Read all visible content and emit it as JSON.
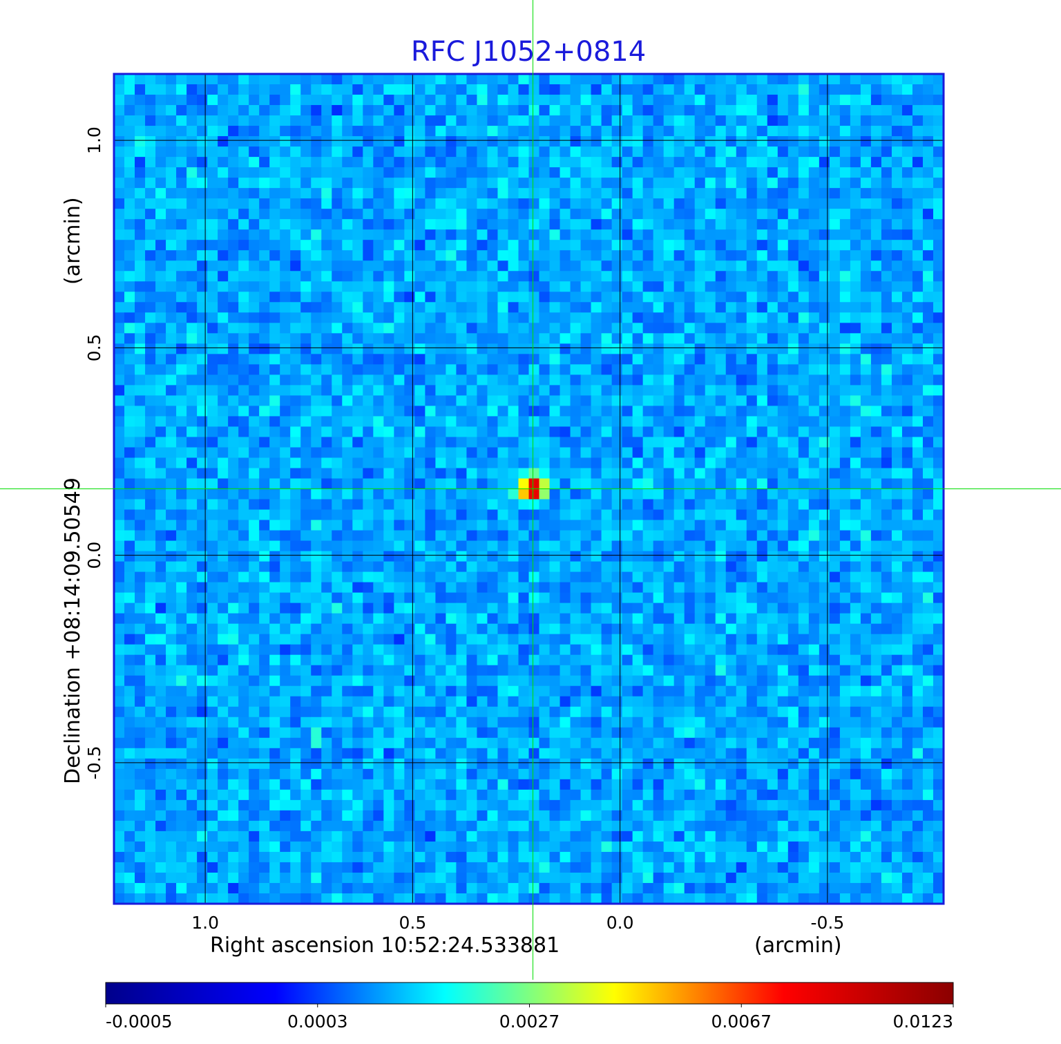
{
  "chart_data": {
    "type": "heatmap",
    "title": "RFC J1052+0814",
    "xlabel": "Right ascension  10:52:24.533881",
    "xunit": "(arcmin)",
    "ylabel": "Declination  +08:14:09.50549",
    "yunit": "(arcmin)",
    "xlim": [
      1.22,
      -0.78
    ],
    "ylim": [
      -0.84,
      1.16
    ],
    "x_ticks": [
      {
        "value": 1.0,
        "label": "1.0"
      },
      {
        "value": 0.5,
        "label": "0.5"
      },
      {
        "value": 0.0,
        "label": "0.0"
      },
      {
        "value": -0.5,
        "label": "-0.5"
      }
    ],
    "y_ticks": [
      {
        "value": 1.0,
        "label": "1.0"
      },
      {
        "value": 0.5,
        "label": "0.5"
      },
      {
        "value": 0.0,
        "label": "0.0"
      },
      {
        "value": -0.5,
        "label": "-0.5"
      }
    ],
    "grid": true,
    "crosshair": {
      "x": 0.21,
      "y": 0.16
    },
    "source": {
      "x": 0.21,
      "y": 0.16,
      "peak": 0.0123
    },
    "background_level": 0.0002,
    "colorbar": {
      "labels": [
        "-0.0005",
        "0.0003",
        "0.0027",
        "0.0067",
        "0.0123"
      ],
      "colormap": [
        "#00008b",
        "#0000ff",
        "#00ffff",
        "#ffff00",
        "#ff0000",
        "#8b0000"
      ]
    },
    "colors": {
      "title": "#1a1adb",
      "frame": "#1a1adb",
      "grid": "#000000",
      "crosshair": "#00dd00"
    }
  }
}
